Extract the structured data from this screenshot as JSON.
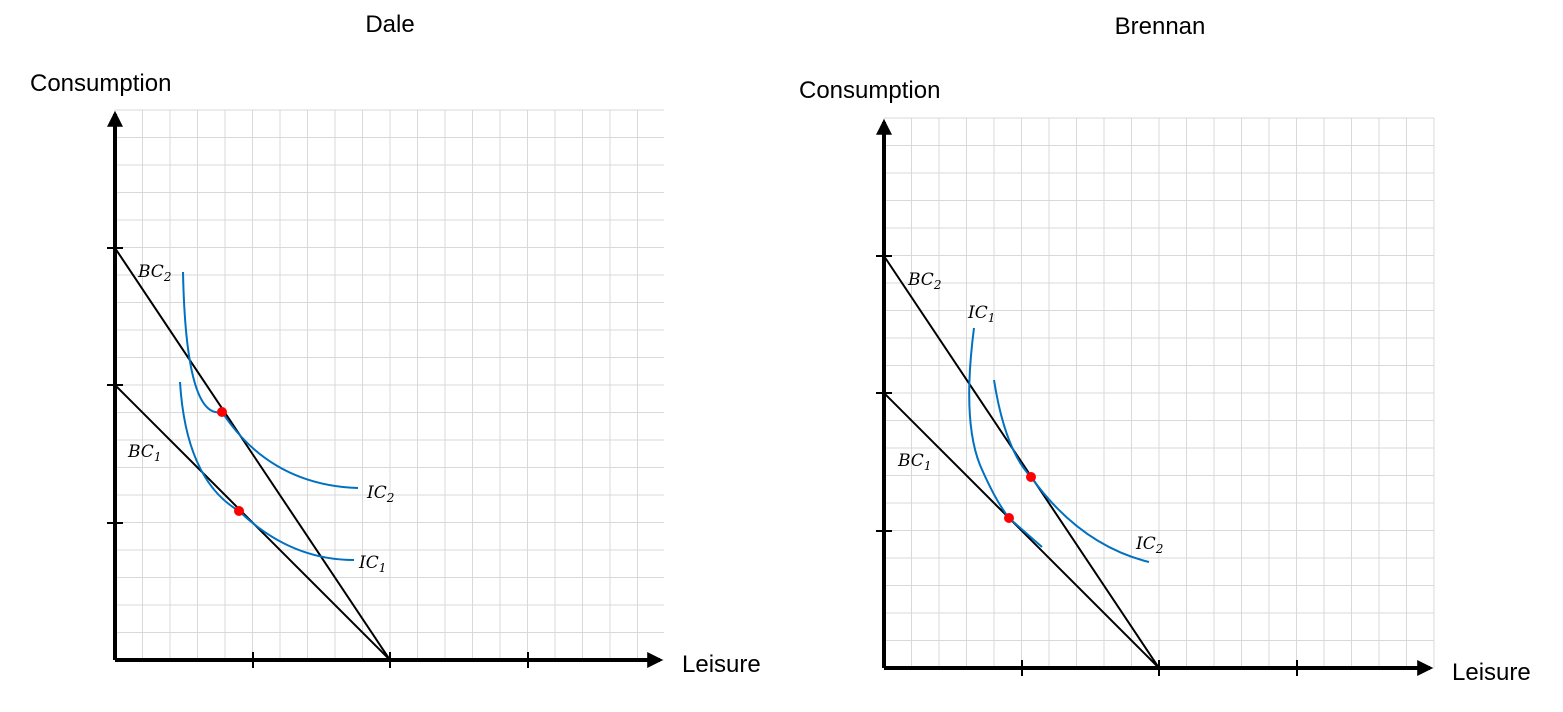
{
  "panels": [
    {
      "id": "dale",
      "title": "Dale",
      "y_axis_label": "Consumption",
      "x_axis_label": "Leisure",
      "budget_constraints": [
        {
          "label": "BC",
          "sub": "1"
        },
        {
          "label": "BC",
          "sub": "2"
        }
      ],
      "indifference_curves": [
        {
          "label": "IC",
          "sub": "1"
        },
        {
          "label": "IC",
          "sub": "2"
        }
      ]
    },
    {
      "id": "brennan",
      "title": "Brennan",
      "y_axis_label": "Consumption",
      "x_axis_label": "Leisure",
      "budget_constraints": [
        {
          "label": "BC",
          "sub": "1"
        },
        {
          "label": "BC",
          "sub": "2"
        }
      ],
      "indifference_curves": [
        {
          "label": "IC",
          "sub": "1"
        },
        {
          "label": "IC",
          "sub": "2"
        }
      ]
    }
  ],
  "colors": {
    "indifference_curve": "#0070c0",
    "optimum_point": "#ff0000",
    "budget_line": "#000000",
    "grid": "#d9d9d9"
  }
}
